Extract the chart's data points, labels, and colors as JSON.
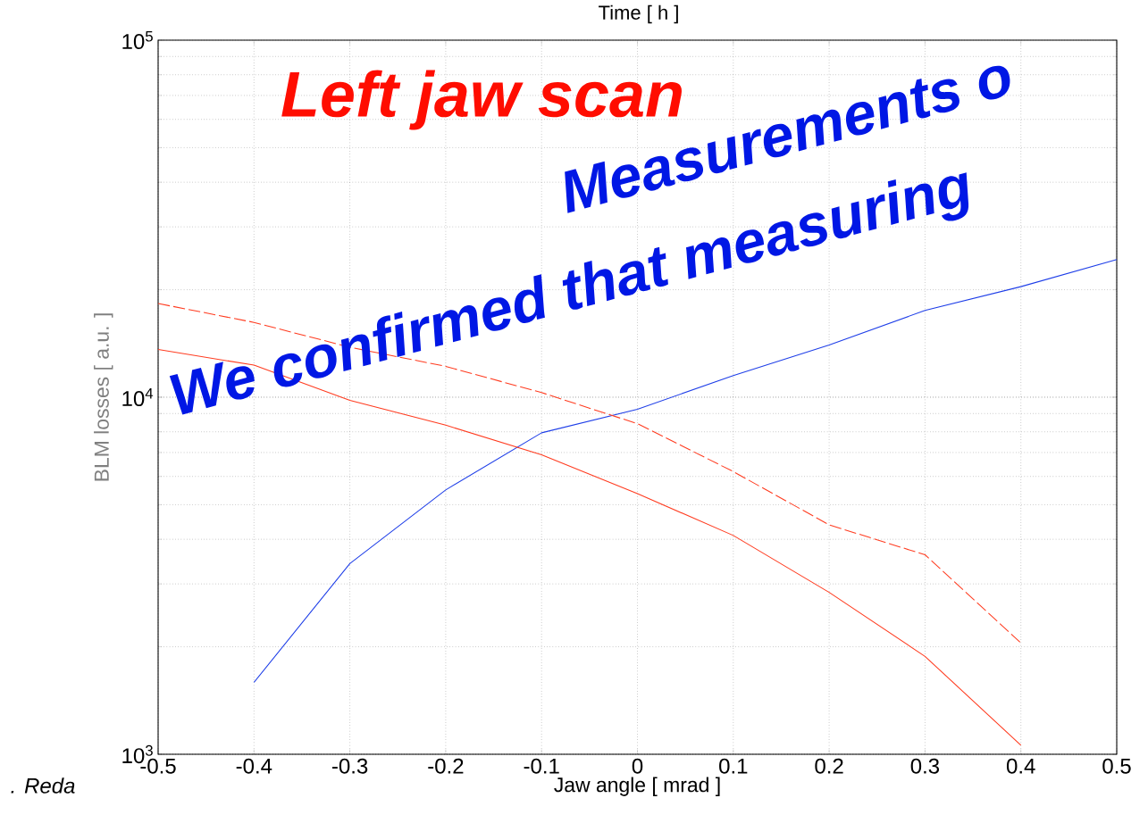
{
  "chart_data": {
    "type": "line",
    "xlabel": "Jaw angle [ mrad ]",
    "ylabel": "BLM losses [ a.u. ]",
    "series": [
      {
        "color": "#1f3fe8",
        "line_style": "solid",
        "x": [
          -0.4,
          -0.3,
          -0.2,
          -0.1,
          0,
          0.1,
          0.2,
          0.3,
          0.4,
          0.5
        ],
        "values": [
          1590,
          3420,
          5500,
          7950,
          9250,
          11500,
          14000,
          17500,
          20400,
          24300
        ]
      },
      {
        "color": "#ff3b1f",
        "line_style": "solid",
        "x": [
          -0.5,
          -0.4,
          -0.3,
          -0.2,
          -0.1,
          0,
          0.1,
          0.2,
          0.3,
          0.4
        ],
        "values": [
          13600,
          12300,
          9800,
          8350,
          6900,
          5370,
          4100,
          2840,
          1880,
          1060
        ]
      },
      {
        "color": "#ff3b1f",
        "line_style": "dashed",
        "x": [
          -0.5,
          -0.4,
          -0.3,
          -0.2,
          -0.1,
          0,
          0.1,
          0.2,
          0.3,
          0.4
        ],
        "values": [
          18300,
          16200,
          13800,
          12200,
          10300,
          8430,
          6190,
          4390,
          3620,
          2050
        ]
      }
    ],
    "xlim": [
      -0.5,
      0.5
    ],
    "xticks": [
      -0.5,
      -0.4,
      -0.3,
      -0.2,
      -0.1,
      0,
      0.1,
      0.2,
      0.3,
      0.4,
      0.5
    ],
    "ylim": [
      1000,
      100000
    ],
    "yticks": [
      {
        "value": 1000,
        "label": "10$^{3}$"
      },
      {
        "value": 10000,
        "label": "10$^{4}$"
      },
      {
        "value": 100000,
        "label": "10$^{5}$"
      }
    ],
    "log": "y",
    "grid": true,
    "marker": "none",
    "annotations": [
      "Time [ h ]",
      "Left jaw scan",
      "Measurements o",
      "We confirmed that measuring",
      ". Reda"
    ]
  }
}
